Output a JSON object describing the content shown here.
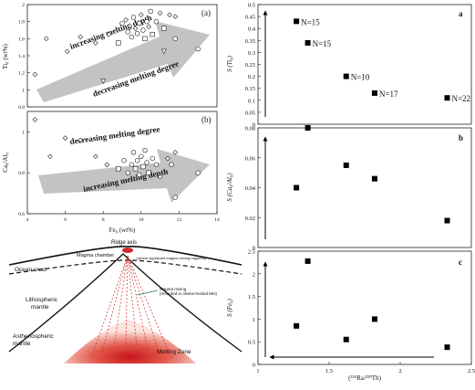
{
  "chart_data": [
    {
      "type": "scatter",
      "panel_label": "(a)",
      "ylabel": "Ti₈ (wt%)",
      "xlim": [
        4,
        14
      ],
      "ylim": [
        0.8,
        2.0
      ],
      "yticks": [
        "0.8",
        "1",
        "1.2",
        "1.4",
        "1.6",
        "1.8",
        "2"
      ],
      "arrow_upper_text": "increasing melting depth",
      "arrow_lower_text": "decreasing melting degree",
      "points": [
        {
          "x": 4.4,
          "y": 1.18,
          "m": "diamond"
        },
        {
          "x": 5.0,
          "y": 1.6,
          "m": "diamond"
        },
        {
          "x": 6.1,
          "y": 1.45,
          "m": "diamond"
        },
        {
          "x": 6.8,
          "y": 1.62,
          "m": "diamond"
        },
        {
          "x": 7.6,
          "y": 1.55,
          "m": "diamond"
        },
        {
          "x": 8.0,
          "y": 1.1,
          "m": "triangle"
        },
        {
          "x": 8.3,
          "y": 1.65,
          "m": "diamond"
        },
        {
          "x": 8.8,
          "y": 1.55,
          "m": "square"
        },
        {
          "x": 9.0,
          "y": 1.78,
          "m": "circle"
        },
        {
          "x": 9.2,
          "y": 1.82,
          "m": "diamond"
        },
        {
          "x": 9.3,
          "y": 1.68,
          "m": "circle"
        },
        {
          "x": 9.4,
          "y": 1.75,
          "m": "diamond"
        },
        {
          "x": 9.5,
          "y": 1.62,
          "m": "circle"
        },
        {
          "x": 9.6,
          "y": 1.85,
          "m": "circle"
        },
        {
          "x": 9.7,
          "y": 1.72,
          "m": "diamond"
        },
        {
          "x": 9.8,
          "y": 1.66,
          "m": "circle"
        },
        {
          "x": 9.9,
          "y": 1.78,
          "m": "circle"
        },
        {
          "x": 10.0,
          "y": 1.88,
          "m": "diamond"
        },
        {
          "x": 10.1,
          "y": 1.7,
          "m": "circle"
        },
        {
          "x": 10.2,
          "y": 1.6,
          "m": "square"
        },
        {
          "x": 10.3,
          "y": 1.8,
          "m": "circle"
        },
        {
          "x": 10.4,
          "y": 1.74,
          "m": "diamond"
        },
        {
          "x": 10.5,
          "y": 1.92,
          "m": "circle"
        },
        {
          "x": 10.6,
          "y": 1.65,
          "m": "square"
        },
        {
          "x": 10.8,
          "y": 1.8,
          "m": "circle"
        },
        {
          "x": 11.0,
          "y": 1.9,
          "m": "diamond"
        },
        {
          "x": 11.2,
          "y": 1.45,
          "m": "triangle"
        },
        {
          "x": 11.5,
          "y": 1.88,
          "m": "diamond"
        },
        {
          "x": 11.8,
          "y": 1.86,
          "m": "diamond"
        },
        {
          "x": 11.8,
          "y": 1.6,
          "m": "circle"
        },
        {
          "x": 11.2,
          "y": 1.72,
          "m": "square"
        },
        {
          "x": 13.0,
          "y": 1.48,
          "m": "circle"
        }
      ]
    },
    {
      "type": "scatter",
      "panel_label": "(b)",
      "xlabel": "Fe₈ (wt%)",
      "ylabel": "Ca₈/Al₈",
      "xlim": [
        4,
        14
      ],
      "ylim": [
        0.6,
        1.1
      ],
      "xticks": [
        "4",
        "6",
        "8",
        "10",
        "12",
        "14"
      ],
      "yticks": [
        "0.6",
        "0.8",
        "1"
      ],
      "arrow_upper_text": "decreasing melting degree",
      "arrow_lower_text": "increasing melting depth",
      "points": [
        {
          "x": 4.4,
          "y": 1.06,
          "m": "diamond"
        },
        {
          "x": 5.2,
          "y": 0.88,
          "m": "diamond"
        },
        {
          "x": 6.0,
          "y": 0.97,
          "m": "diamond"
        },
        {
          "x": 6.8,
          "y": 0.96,
          "m": "diamond"
        },
        {
          "x": 7.6,
          "y": 0.88,
          "m": "diamond"
        },
        {
          "x": 8.2,
          "y": 0.84,
          "m": "diamond"
        },
        {
          "x": 8.8,
          "y": 0.82,
          "m": "square"
        },
        {
          "x": 9.1,
          "y": 0.86,
          "m": "circle"
        },
        {
          "x": 9.3,
          "y": 0.8,
          "m": "circle"
        },
        {
          "x": 9.5,
          "y": 0.84,
          "m": "circle"
        },
        {
          "x": 9.6,
          "y": 0.9,
          "m": "circle"
        },
        {
          "x": 9.7,
          "y": 0.82,
          "m": "square"
        },
        {
          "x": 9.8,
          "y": 0.86,
          "m": "circle"
        },
        {
          "x": 9.9,
          "y": 0.79,
          "m": "circle"
        },
        {
          "x": 10.0,
          "y": 0.88,
          "m": "circle"
        },
        {
          "x": 10.1,
          "y": 0.83,
          "m": "square"
        },
        {
          "x": 10.2,
          "y": 0.91,
          "m": "circle"
        },
        {
          "x": 10.3,
          "y": 0.85,
          "m": "circle"
        },
        {
          "x": 10.4,
          "y": 0.8,
          "m": "square"
        },
        {
          "x": 10.6,
          "y": 0.87,
          "m": "circle"
        },
        {
          "x": 10.8,
          "y": 0.84,
          "m": "circle"
        },
        {
          "x": 11.0,
          "y": 0.78,
          "m": "diamond"
        },
        {
          "x": 11.4,
          "y": 0.87,
          "m": "diamond"
        },
        {
          "x": 11.8,
          "y": 0.9,
          "m": "diamond"
        },
        {
          "x": 11.6,
          "y": 0.84,
          "m": "circle"
        },
        {
          "x": 11.8,
          "y": 0.68,
          "m": "circle"
        },
        {
          "x": 13.0,
          "y": 0.8,
          "m": "circle"
        }
      ]
    },
    {
      "type": "scatter",
      "panel_label": "a",
      "ylabel": "S (Ti₈)",
      "xlim": [
        1,
        2.5
      ],
      "ylim": [
        0,
        0.5
      ],
      "yticks": [
        "0",
        "0.05",
        "0.1",
        "0.15",
        "0.2",
        "0.25",
        "0.3",
        "0.35",
        "0.4",
        "0.45",
        "0.5"
      ],
      "points": [
        {
          "x": 1.27,
          "y": 0.43,
          "label": "N=15"
        },
        {
          "x": 1.35,
          "y": 0.34,
          "label": "N=15"
        },
        {
          "x": 1.62,
          "y": 0.2,
          "label": "N=10"
        },
        {
          "x": 1.82,
          "y": 0.13,
          "label": "N=17"
        },
        {
          "x": 2.33,
          "y": 0.11,
          "label": "N=22"
        }
      ]
    },
    {
      "type": "scatter",
      "panel_label": "b",
      "ylabel": "S (Ca₈/Al₈)",
      "xlim": [
        1,
        2.5
      ],
      "ylim": [
        0,
        0.08
      ],
      "yticks": [
        "0",
        "0.02",
        "0.04",
        "0.06",
        "0.08"
      ],
      "points": [
        {
          "x": 1.27,
          "y": 0.04
        },
        {
          "x": 1.35,
          "y": 0.08
        },
        {
          "x": 1.62,
          "y": 0.055
        },
        {
          "x": 1.82,
          "y": 0.046
        },
        {
          "x": 2.33,
          "y": 0.018
        }
      ]
    },
    {
      "type": "scatter",
      "panel_label": "c",
      "ylabel": "S (Fe₈)",
      "xlabel": "(²²⁶Ra/²³⁰Th)",
      "xlim": [
        1,
        2.5
      ],
      "ylim": [
        0,
        2.5
      ],
      "xticks": [
        "1",
        "1.5",
        "2",
        "2.5"
      ],
      "yticks": [
        "0",
        "0.5",
        "1",
        "1.5",
        "2",
        "2.5"
      ],
      "points": [
        {
          "x": 1.27,
          "y": 0.85
        },
        {
          "x": 1.35,
          "y": 2.28
        },
        {
          "x": 1.62,
          "y": 0.55
        },
        {
          "x": 1.82,
          "y": 1.0
        },
        {
          "x": 2.33,
          "y": 0.38
        }
      ]
    }
  ],
  "diagram": {
    "ridge_axis": "Ridge axis",
    "magma_chamber": "Magma chamber",
    "chamber_note": "(where significant magma mixing happens)",
    "ocean_crust": "Ocean crust",
    "lithospheric_mantle": "Lithospheric\nmantle",
    "asthenospheric_mantle": "Asthenospheric\nmantle",
    "magma_mixing": "Magma mixing\n(recorded in olivine-hosted MIs)",
    "melting_zone": "Melting Zone",
    "colors": {
      "melt_red": "#d12a2a",
      "zone_core": "#cc1b1b",
      "zone_edge": "#f6d2cc"
    }
  }
}
